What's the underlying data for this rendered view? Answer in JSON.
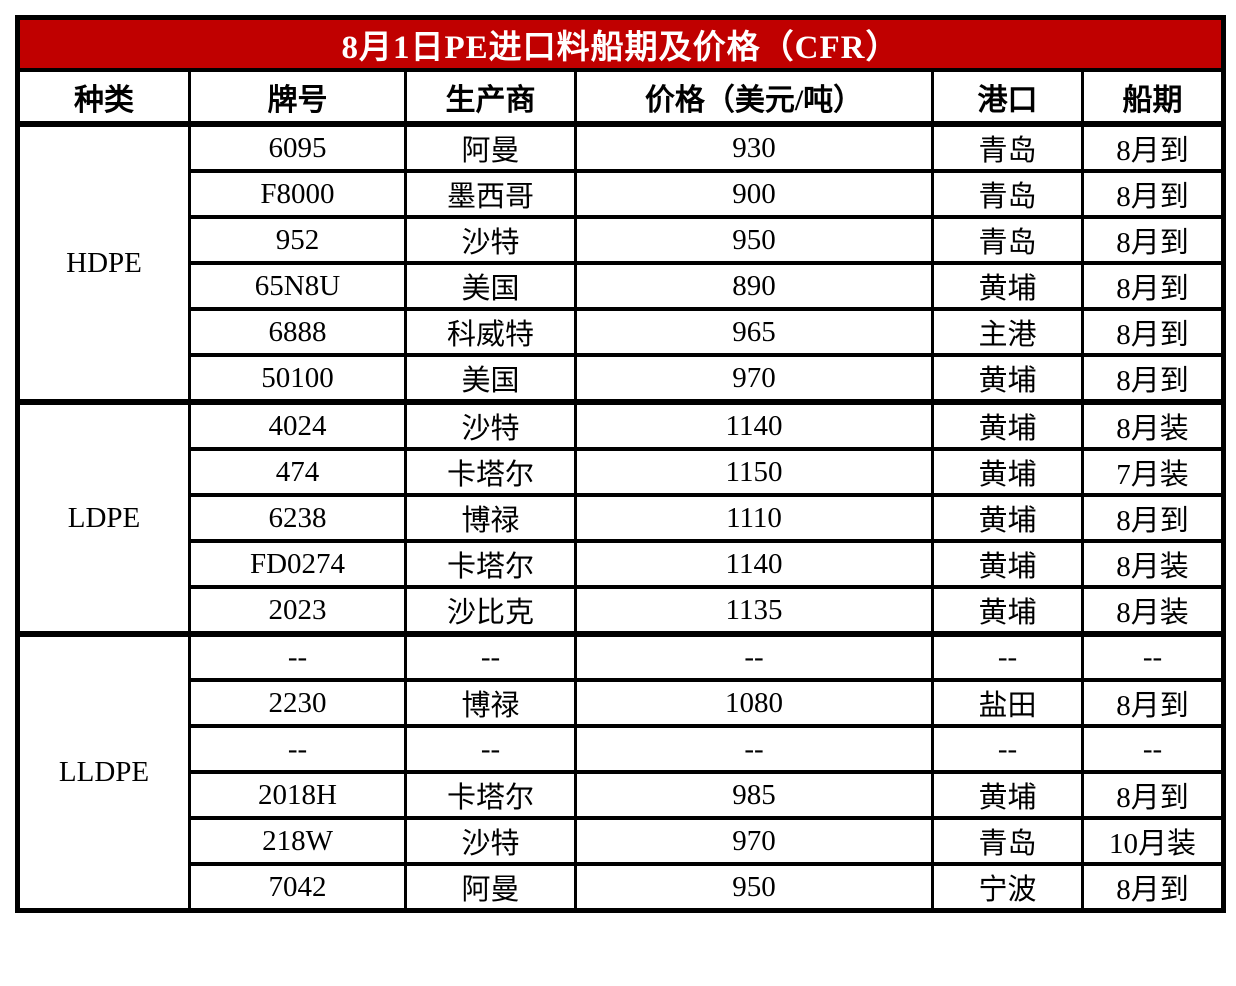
{
  "title": "8月1日PE进口料船期及价格（CFR）",
  "colors": {
    "title_bg": "#C00000",
    "title_text": "#FFFFFF",
    "border": "#000000",
    "page_bg": "#FFFFFF"
  },
  "columns": [
    "种类",
    "牌号",
    "生产商",
    "价格（美元/吨）",
    "港口",
    "船期"
  ],
  "groups": [
    {
      "category": "HDPE",
      "rows": [
        [
          "6095",
          "阿曼",
          "930",
          "青岛",
          "8月到"
        ],
        [
          "F8000",
          "墨西哥",
          "900",
          "青岛",
          "8月到"
        ],
        [
          "952",
          "沙特",
          "950",
          "青岛",
          "8月到"
        ],
        [
          "65N8U",
          "美国",
          "890",
          "黄埔",
          "8月到"
        ],
        [
          "6888",
          "科威特",
          "965",
          "主港",
          "8月到"
        ],
        [
          "50100",
          "美国",
          "970",
          "黄埔",
          "8月到"
        ]
      ]
    },
    {
      "category": "LDPE",
      "rows": [
        [
          "4024",
          "沙特",
          "1140",
          "黄埔",
          "8月装"
        ],
        [
          "474",
          "卡塔尔",
          "1150",
          "黄埔",
          "7月装"
        ],
        [
          "6238",
          "博禄",
          "1110",
          "黄埔",
          "8月到"
        ],
        [
          "FD0274",
          "卡塔尔",
          "1140",
          "黄埔",
          "8月装"
        ],
        [
          "2023",
          "沙比克",
          "1135",
          "黄埔",
          "8月装"
        ]
      ]
    },
    {
      "category": "LLDPE",
      "rows": [
        [
          "--",
          "--",
          "--",
          "--",
          "--"
        ],
        [
          "2230",
          "博禄",
          "1080",
          "盐田",
          "8月到"
        ],
        [
          "--",
          "--",
          "--",
          "--",
          "--"
        ],
        [
          "2018H",
          "卡塔尔",
          "985",
          "黄埔",
          "8月到"
        ],
        [
          "218W",
          "沙特",
          "970",
          "青岛",
          "10月装"
        ],
        [
          "7042",
          "阿曼",
          "950",
          "宁波",
          "8月到"
        ]
      ]
    }
  ]
}
